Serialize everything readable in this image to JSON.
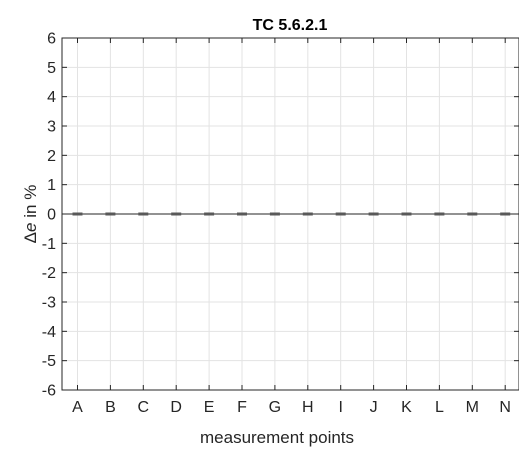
{
  "chart_data": {
    "type": "bar",
    "title": "TC 5.6.2.1",
    "xlabel": "measurement points",
    "ylabel_symbol": "Δ",
    "ylabel_var": "e",
    "ylabel_rest": " in %",
    "categories": [
      "A",
      "B",
      "C",
      "D",
      "E",
      "F",
      "G",
      "H",
      "I",
      "J",
      "K",
      "L",
      "M",
      "N"
    ],
    "values": [
      0,
      0,
      0,
      0,
      0,
      0,
      0,
      0,
      0,
      0,
      0,
      0,
      0,
      0
    ],
    "ylim": [
      -6,
      6
    ],
    "yticks": [
      6,
      5,
      4,
      3,
      2,
      1,
      0,
      -1,
      -2,
      -3,
      -4,
      -5,
      -6
    ],
    "ytick_labels": [
      "6",
      "5",
      "4",
      "3",
      "2",
      "1",
      "0",
      "-1",
      "-2",
      "-3",
      "-4",
      "-5",
      "-6"
    ],
    "grid": true,
    "bar_color": "#595959"
  }
}
